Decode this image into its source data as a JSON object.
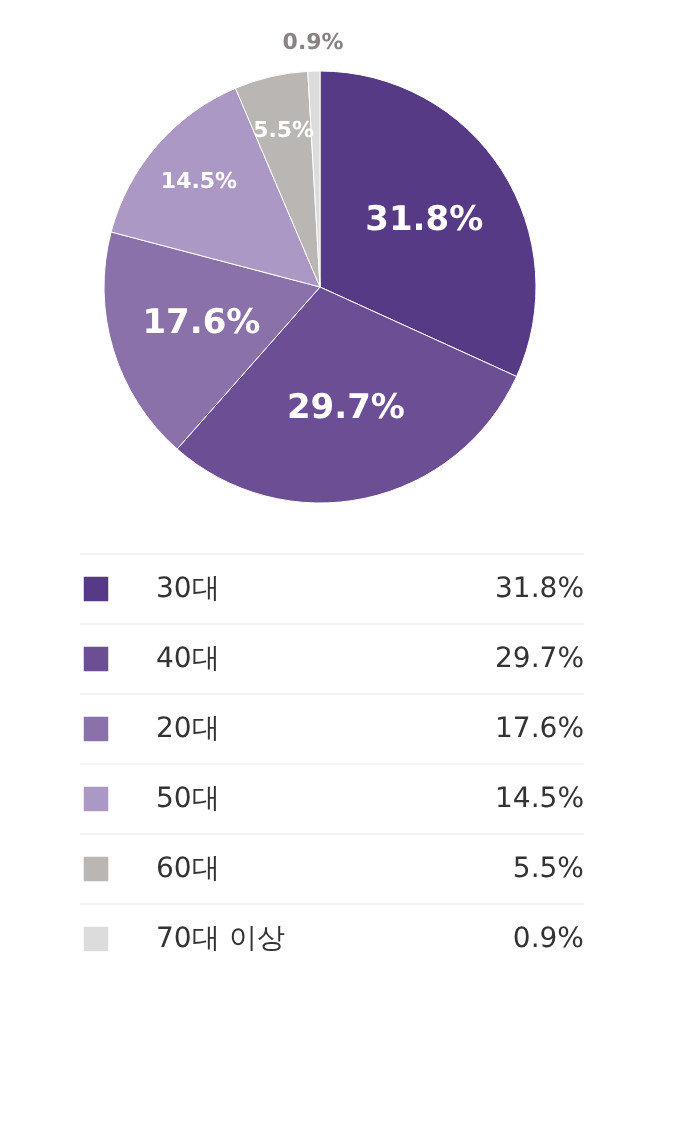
{
  "chart_data": {
    "type": "pie",
    "categories": [
      "30대",
      "40대",
      "20대",
      "50대",
      "60대",
      "70대 이상"
    ],
    "values": [
      31.8,
      29.7,
      17.6,
      14.5,
      5.5,
      0.9
    ],
    "value_labels": [
      "31.8%",
      "29.7%",
      "17.6%",
      "14.5%",
      "5.5%",
      "0.9%"
    ],
    "colors": [
      "#573a86",
      "#6b4e93",
      "#8a71aa",
      "#ac98c4",
      "#b9b6b4",
      "#dcdcdc"
    ],
    "legend": "bottom"
  }
}
